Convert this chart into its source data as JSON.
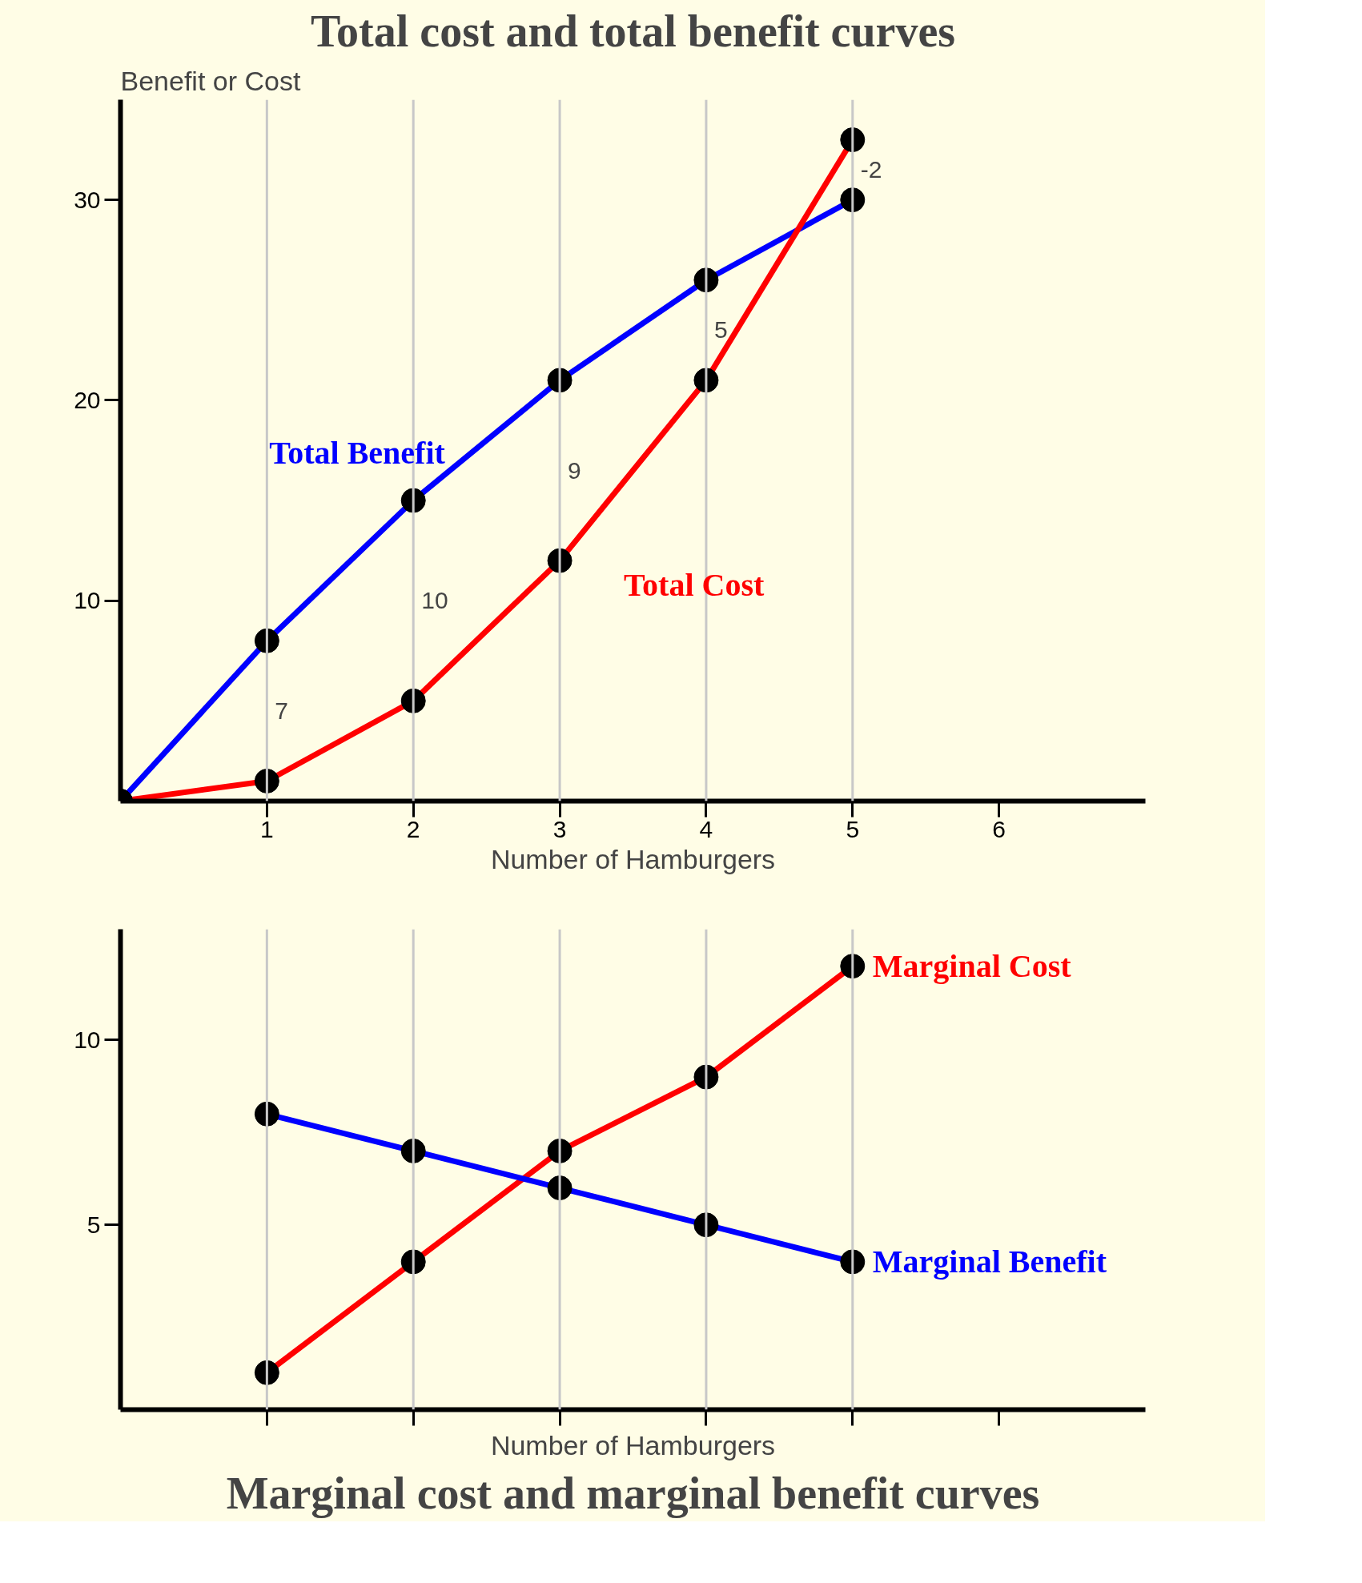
{
  "chart_data": [
    {
      "type": "line",
      "title": "Total cost and total benefit curves",
      "ylabel": "Benefit or Cost",
      "xlabel": "Number of Hamburgers",
      "x": [
        0,
        1,
        2,
        3,
        4,
        5
      ],
      "series": [
        {
          "name": "Total Benefit",
          "color": "#0000ff",
          "values": [
            0,
            8,
            15,
            21,
            26,
            30
          ]
        },
        {
          "name": "Total Cost",
          "color": "#ff0000",
          "values": [
            0,
            1,
            5,
            12,
            21,
            33
          ]
        }
      ],
      "xlim": [
        0,
        7
      ],
      "ylim": [
        0,
        35
      ],
      "xticks": [
        1,
        2,
        3,
        4,
        5,
        6
      ],
      "yticks": [
        10,
        20,
        30
      ],
      "marker": "circle",
      "grid": false,
      "ref_lines": [
        {
          "axis": "x",
          "value": 1,
          "color": "#c8c8c8"
        },
        {
          "axis": "x",
          "value": 2,
          "color": "#c8c8c8"
        },
        {
          "axis": "x",
          "value": 3,
          "color": "#c8c8c8"
        },
        {
          "axis": "x",
          "value": 4,
          "color": "#c8c8c8"
        },
        {
          "axis": "x",
          "value": 5,
          "color": "#c8c8c8"
        }
      ],
      "annotations": [
        {
          "text": "7",
          "x": 1,
          "y": 4.5
        },
        {
          "text": "10",
          "x": 2,
          "y": 10
        },
        {
          "text": "9",
          "x": 3,
          "y": 16.5
        },
        {
          "text": "5",
          "x": 4,
          "y": 23.5
        },
        {
          "text": "-2",
          "x": 5,
          "y": 31.5
        }
      ]
    },
    {
      "type": "line",
      "title": "Marginal cost and marginal benefit curves",
      "xlabel": "Number of Hamburgers",
      "x": [
        1,
        2,
        3,
        4,
        5
      ],
      "series": [
        {
          "name": "Marginal Cost",
          "color": "#ff0000",
          "values": [
            1,
            4,
            7,
            9,
            12
          ]
        },
        {
          "name": "Marginal Benefit",
          "color": "#0000ff",
          "values": [
            8,
            7,
            6,
            5,
            4
          ]
        }
      ],
      "xlim": [
        0,
        7
      ],
      "ylim": [
        0,
        13
      ],
      "xticks": [
        {
          "value": 1,
          "label": null
        },
        {
          "value": 2,
          "label": null
        },
        {
          "value": 3,
          "label": null
        },
        {
          "value": 4,
          "label": null
        },
        {
          "value": 5,
          "label": null
        },
        {
          "value": 6,
          "label": null
        }
      ],
      "yticks": [
        5,
        10
      ],
      "marker": "circle",
      "grid": false,
      "tick_labels": "y",
      "ref_lines": [
        {
          "axis": "x",
          "value": 1,
          "color": "#c8c8c8"
        },
        {
          "axis": "x",
          "value": 2,
          "color": "#c8c8c8"
        },
        {
          "axis": "x",
          "value": 3,
          "color": "#c8c8c8"
        },
        {
          "axis": "x",
          "value": 4,
          "color": "#c8c8c8"
        },
        {
          "axis": "x",
          "value": 5,
          "color": "#c8c8c8"
        }
      ]
    }
  ]
}
